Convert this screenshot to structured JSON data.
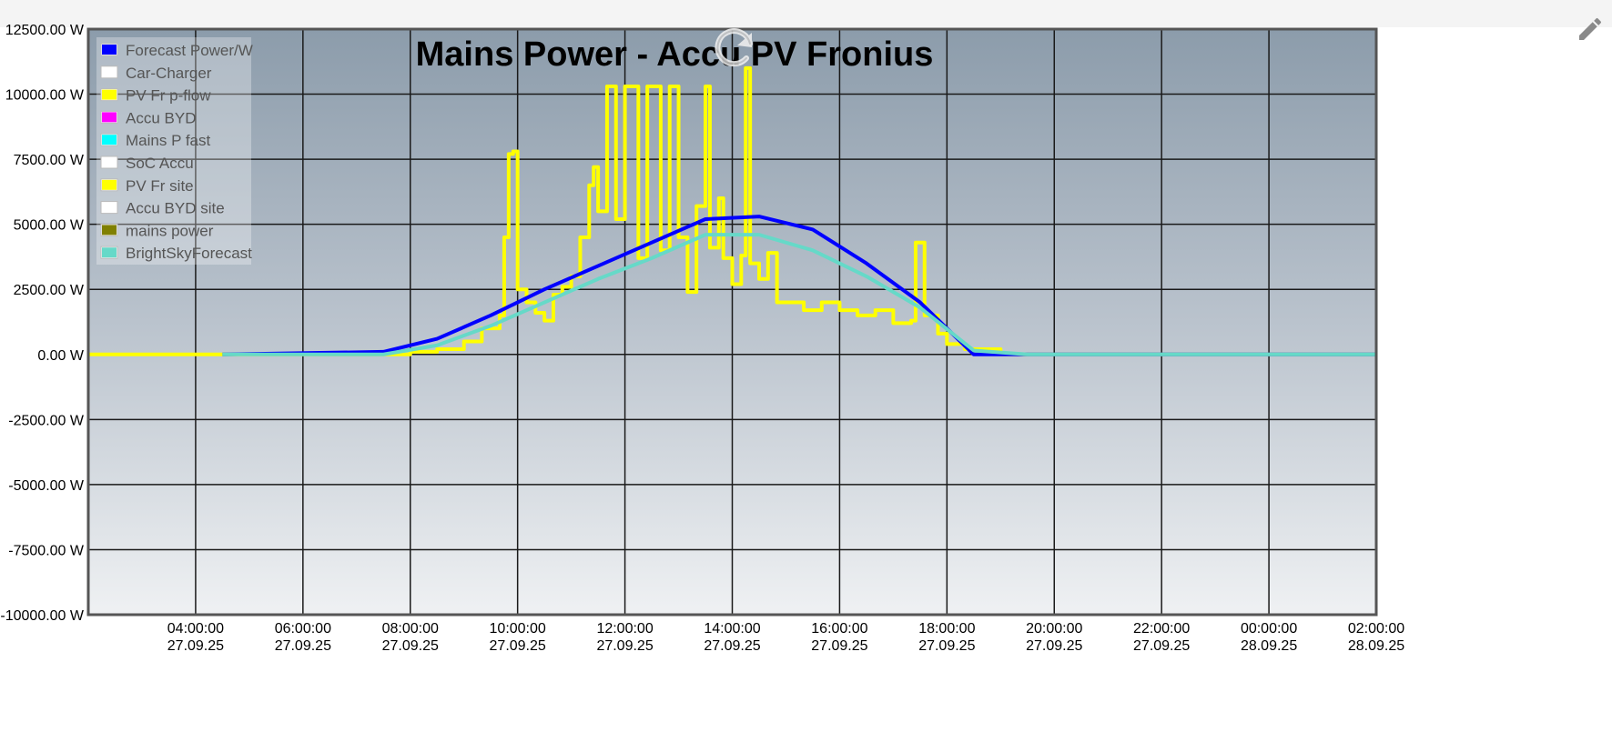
{
  "chart_data": {
    "type": "line",
    "title": "Mains Power - Accu PV Fronius",
    "ylim": [
      -10000,
      12500
    ],
    "y_ticks": [
      12500,
      10000,
      7500,
      5000,
      2500,
      0,
      -2500,
      -5000,
      -7500,
      -10000
    ],
    "y_tick_labels": [
      "12500.00 W",
      "10000.00 W",
      "7500.00 W",
      "5000.00 W",
      "2500.00 W",
      "0.00 W",
      "-2500.00 W",
      "-5000.00 W",
      "-7500.00 W",
      "-10000.00 W"
    ],
    "xlim": [
      "27.09.25 02:00",
      "28.09.25 02:00"
    ],
    "x_ticks": [
      {
        "time": "04:00:00",
        "date": "27.09.25"
      },
      {
        "time": "06:00:00",
        "date": "27.09.25"
      },
      {
        "time": "08:00:00",
        "date": "27.09.25"
      },
      {
        "time": "10:00:00",
        "date": "27.09.25"
      },
      {
        "time": "12:00:00",
        "date": "27.09.25"
      },
      {
        "time": "14:00:00",
        "date": "27.09.25"
      },
      {
        "time": "16:00:00",
        "date": "27.09.25"
      },
      {
        "time": "18:00:00",
        "date": "27.09.25"
      },
      {
        "time": "20:00:00",
        "date": "27.09.25"
      },
      {
        "time": "22:00:00",
        "date": "27.09.25"
      },
      {
        "time": "00:00:00",
        "date": "28.09.25"
      },
      {
        "time": "02:00:00",
        "date": "28.09.25"
      }
    ],
    "grid": true,
    "legend_position": "top-left",
    "legend": [
      {
        "name": "Forecast Power/W",
        "color": "#0000ff"
      },
      {
        "name": "Car-Charger",
        "color": "#ffffff"
      },
      {
        "name": "PV Fr p-flow",
        "color": "#ffff00"
      },
      {
        "name": "Accu BYD",
        "color": "#ff00ff"
      },
      {
        "name": "Mains P fast",
        "color": "#00ffff"
      },
      {
        "name": "SoC Accu",
        "color": "#ffffff"
      },
      {
        "name": "PV Fr site",
        "color": "#ffff00"
      },
      {
        "name": "Accu BYD site",
        "color": "#ffffff"
      },
      {
        "name": "mains power",
        "color": "#808000"
      },
      {
        "name": "BrightSkyForecast",
        "color": "#66d9c8"
      }
    ],
    "series": [
      {
        "name": "Forecast Power/W",
        "color": "#0000ff",
        "points": [
          [
            "27.09.25 04:30",
            0
          ],
          [
            "27.09.25 07:30",
            100
          ],
          [
            "27.09.25 08:30",
            600
          ],
          [
            "27.09.25 09:30",
            1500
          ],
          [
            "27.09.25 10:30",
            2500
          ],
          [
            "27.09.25 11:30",
            3400
          ],
          [
            "27.09.25 12:30",
            4300
          ],
          [
            "27.09.25 13:30",
            5200
          ],
          [
            "27.09.25 14:30",
            5300
          ],
          [
            "27.09.25 15:30",
            4800
          ],
          [
            "27.09.25 16:30",
            3500
          ],
          [
            "27.09.25 17:30",
            2000
          ],
          [
            "27.09.25 18:30",
            0
          ],
          [
            "27.09.25 19:30",
            0
          ],
          [
            "28.09.25 02:00",
            0
          ]
        ]
      },
      {
        "name": "BrightSkyForecast",
        "color": "#66d9c8",
        "points": [
          [
            "27.09.25 04:30",
            0
          ],
          [
            "27.09.25 07:30",
            0
          ],
          [
            "27.09.25 08:30",
            350
          ],
          [
            "27.09.25 09:30",
            1100
          ],
          [
            "27.09.25 10:30",
            2000
          ],
          [
            "27.09.25 11:30",
            2900
          ],
          [
            "27.09.25 12:30",
            3700
          ],
          [
            "27.09.25 13:30",
            4600
          ],
          [
            "27.09.25 14:30",
            4600
          ],
          [
            "27.09.25 15:30",
            4000
          ],
          [
            "27.09.25 16:30",
            3000
          ],
          [
            "27.09.25 17:30",
            1800
          ],
          [
            "27.09.25 18:30",
            150
          ],
          [
            "27.09.25 19:30",
            0
          ],
          [
            "28.09.25 02:00",
            0
          ]
        ]
      },
      {
        "name": "PV Fr site",
        "color": "#ffff00",
        "step": true,
        "points": [
          [
            "27.09.25 02:00",
            0
          ],
          [
            "27.09.25 04:30",
            0
          ],
          [
            "27.09.25 07:30",
            0
          ],
          [
            "27.09.25 08:00",
            100
          ],
          [
            "27.09.25 08:30",
            200
          ],
          [
            "27.09.25 09:00",
            500
          ],
          [
            "27.09.25 09:20",
            1000
          ],
          [
            "27.09.25 09:40",
            1500
          ],
          [
            "27.09.25 09:45",
            4500
          ],
          [
            "27.09.25 09:50",
            7700
          ],
          [
            "27.09.25 09:55",
            7800
          ],
          [
            "27.09.25 10:00",
            2500
          ],
          [
            "27.09.25 10:10",
            2000
          ],
          [
            "27.09.25 10:20",
            1600
          ],
          [
            "27.09.25 10:30",
            1300
          ],
          [
            "27.09.25 10:40",
            2300
          ],
          [
            "27.09.25 10:50",
            2600
          ],
          [
            "27.09.25 11:00",
            3000
          ],
          [
            "27.09.25 11:10",
            4500
          ],
          [
            "27.09.25 11:20",
            6500
          ],
          [
            "27.09.25 11:25",
            7200
          ],
          [
            "27.09.25 11:30",
            5500
          ],
          [
            "27.09.25 11:40",
            10300
          ],
          [
            "27.09.25 11:50",
            5200
          ],
          [
            "27.09.25 12:00",
            10300
          ],
          [
            "27.09.25 12:15",
            3700
          ],
          [
            "27.09.25 12:25",
            10300
          ],
          [
            "27.09.25 12:40",
            4000
          ],
          [
            "27.09.25 12:50",
            10300
          ],
          [
            "27.09.25 13:00",
            4500
          ],
          [
            "27.09.25 13:10",
            2400
          ],
          [
            "27.09.25 13:20",
            5700
          ],
          [
            "27.09.25 13:30",
            10300
          ],
          [
            "27.09.25 13:35",
            4100
          ],
          [
            "27.09.25 13:45",
            6000
          ],
          [
            "27.09.25 13:50",
            3700
          ],
          [
            "27.09.25 14:00",
            2700
          ],
          [
            "27.09.25 14:10",
            3800
          ],
          [
            "27.09.25 14:15",
            11000
          ],
          [
            "27.09.25 14:20",
            3500
          ],
          [
            "27.09.25 14:30",
            2900
          ],
          [
            "27.09.25 14:40",
            3900
          ],
          [
            "27.09.25 14:50",
            2000
          ],
          [
            "27.09.25 15:00",
            2000
          ],
          [
            "27.09.25 15:20",
            1700
          ],
          [
            "27.09.25 15:40",
            2000
          ],
          [
            "27.09.25 16:00",
            1700
          ],
          [
            "27.09.25 16:20",
            1500
          ],
          [
            "27.09.25 16:40",
            1700
          ],
          [
            "27.09.25 17:00",
            1200
          ],
          [
            "27.09.25 17:20",
            1300
          ],
          [
            "27.09.25 17:25",
            4300
          ],
          [
            "27.09.25 17:35",
            1500
          ],
          [
            "27.09.25 17:50",
            800
          ],
          [
            "27.09.25 18:00",
            400
          ],
          [
            "27.09.25 18:20",
            200
          ],
          [
            "27.09.25 19:00",
            0
          ],
          [
            "28.09.25 02:00",
            0
          ]
        ]
      }
    ]
  }
}
